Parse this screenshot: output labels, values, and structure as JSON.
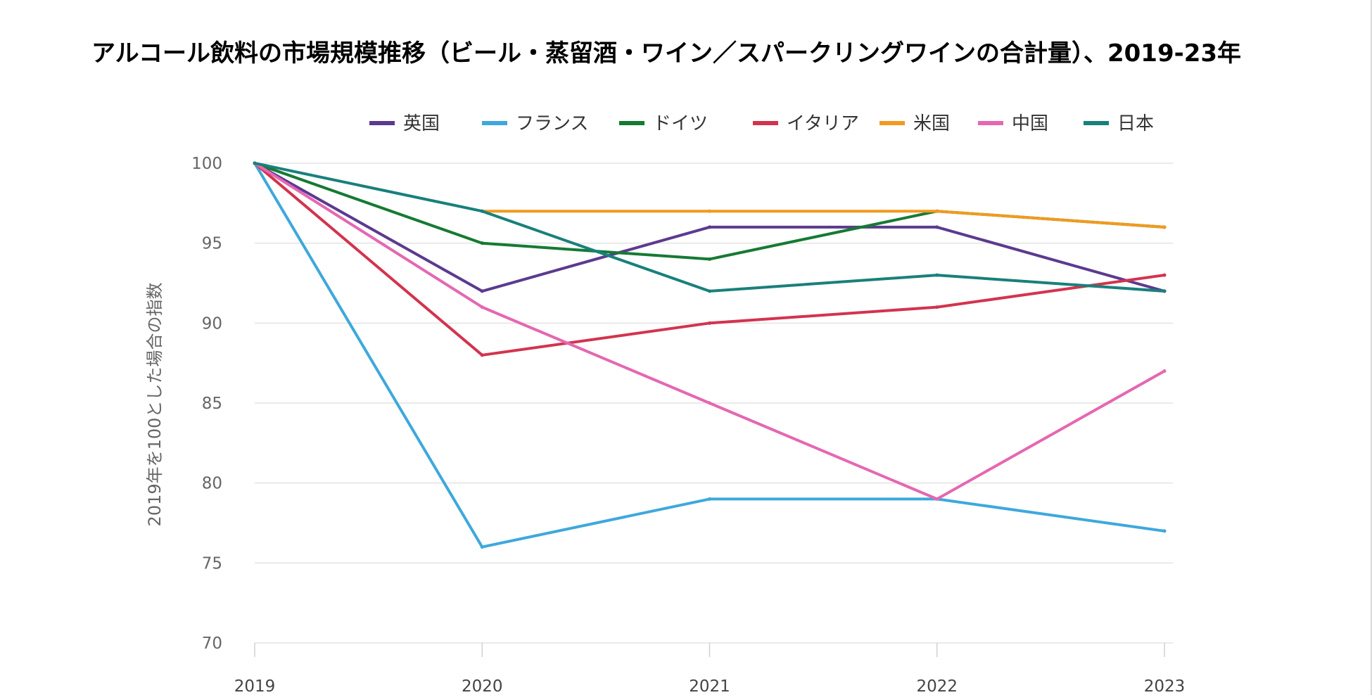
{
  "chart_data": {
    "type": "line",
    "title": "アルコール飲料の市場規模推移（ビール・蒸留酒・ワイン／スパークリングワインの合計量）、2019-23年",
    "xlabel": "",
    "ylabel": "2019年を100とした場合の指数",
    "x": [
      "2019",
      "2020",
      "2021",
      "2022",
      "2023"
    ],
    "ylim": [
      70,
      100
    ],
    "yticks": [
      "70",
      "75",
      "80",
      "85",
      "90",
      "95",
      "100"
    ],
    "grid": true,
    "legend_position": "top",
    "series": [
      {
        "name": "英国",
        "color": "#5c3a8f",
        "values": [
          100,
          92,
          96,
          96,
          92
        ]
      },
      {
        "name": "フランス",
        "color": "#3ea8dc",
        "values": [
          100,
          76,
          79,
          79,
          77
        ]
      },
      {
        "name": "ドイツ",
        "color": "#157a33",
        "values": [
          100,
          95,
          94,
          97,
          96
        ]
      },
      {
        "name": "イタリア",
        "color": "#d3334f",
        "values": [
          100,
          88,
          90,
          91,
          93
        ]
      },
      {
        "name": "米国",
        "color": "#f29a1f",
        "values": [
          null,
          97,
          97,
          97,
          96
        ]
      },
      {
        "name": "中国",
        "color": "#e567b2",
        "values": [
          100,
          91,
          85,
          79,
          87
        ]
      },
      {
        "name": "日本",
        "color": "#19807b",
        "values": [
          100,
          97,
          92,
          93,
          92
        ]
      }
    ]
  }
}
